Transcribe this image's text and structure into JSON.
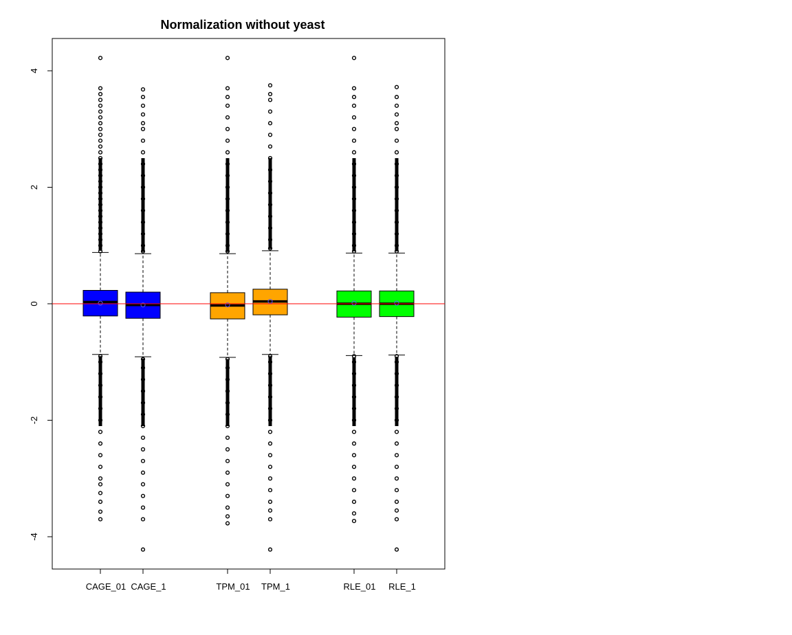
{
  "chart_data": {
    "type": "boxplot",
    "title": "Normalization without yeast",
    "xlabel": "",
    "ylabel": "",
    "ylim": [
      -4.5,
      4.5
    ],
    "y_ticks": [
      -4,
      -2,
      0,
      2,
      4
    ],
    "y_tick_labels": [
      "-4",
      "-2",
      "0",
      "2",
      "4"
    ],
    "reference_line": {
      "y": 0,
      "color": "#ff0000"
    },
    "grid": false,
    "legend": "none",
    "series": [
      {
        "name": "CAGE_01",
        "label": "CAGE_01",
        "color": "#0000ff",
        "q1": -0.21,
        "median": 0.03,
        "q3": 0.23,
        "mean": 0.01,
        "whisker_low": -0.87,
        "whisker_high": 0.88,
        "outliers_high": [
          0.9,
          1.0,
          1.1,
          1.2,
          1.3,
          1.4,
          1.5,
          1.6,
          1.7,
          1.8,
          1.9,
          2.0,
          2.1,
          2.2,
          2.3,
          2.4,
          2.5,
          2.6,
          2.7,
          2.8,
          2.9,
          3.0,
          3.1,
          3.2,
          3.3,
          3.4,
          3.5,
          3.6,
          3.7,
          4.22
        ],
        "outliers_low": [
          -0.9,
          -1.0,
          -1.2,
          -1.4,
          -1.6,
          -1.8,
          -2.0,
          -2.2,
          -2.4,
          -2.6,
          -2.8,
          -3.0,
          -3.1,
          -3.25,
          -3.4,
          -3.57,
          -3.7
        ]
      },
      {
        "name": "CAGE_1",
        "label": "CAGE_1",
        "color": "#0000ff",
        "q1": -0.25,
        "median": -0.02,
        "q3": 0.2,
        "mean": -0.02,
        "whisker_low": -0.91,
        "whisker_high": 0.86,
        "outliers_high": [
          0.9,
          1.0,
          1.2,
          1.4,
          1.6,
          1.8,
          2.0,
          2.2,
          2.4,
          2.6,
          2.8,
          3.0,
          3.1,
          3.25,
          3.4,
          3.55,
          3.68
        ],
        "outliers_low": [
          -0.95,
          -1.1,
          -1.3,
          -1.5,
          -1.7,
          -1.9,
          -2.1,
          -2.3,
          -2.5,
          -2.7,
          -2.9,
          -3.1,
          -3.3,
          -3.5,
          -3.7,
          -4.22
        ]
      },
      {
        "name": "TPM_01",
        "label": "TPM_01",
        "color": "#ffa500",
        "q1": -0.26,
        "median": -0.03,
        "q3": 0.19,
        "mean": -0.02,
        "whisker_low": -0.92,
        "whisker_high": 0.86,
        "outliers_high": [
          0.9,
          1.0,
          1.2,
          1.4,
          1.6,
          1.8,
          2.0,
          2.2,
          2.4,
          2.6,
          2.8,
          3.0,
          3.2,
          3.4,
          3.55,
          3.7,
          4.22
        ],
        "outliers_low": [
          -0.95,
          -1.1,
          -1.3,
          -1.5,
          -1.7,
          -1.9,
          -2.1,
          -2.3,
          -2.5,
          -2.7,
          -2.9,
          -3.1,
          -3.3,
          -3.5,
          -3.65,
          -3.77
        ]
      },
      {
        "name": "TPM_1",
        "label": "TPM_1",
        "color": "#ffa500",
        "q1": -0.19,
        "median": 0.04,
        "q3": 0.25,
        "mean": 0.04,
        "whisker_low": -0.87,
        "whisker_high": 0.91,
        "outliers_high": [
          0.95,
          1.1,
          1.3,
          1.5,
          1.7,
          1.9,
          2.1,
          2.3,
          2.5,
          2.7,
          2.9,
          3.1,
          3.3,
          3.5,
          3.6,
          3.75
        ],
        "outliers_low": [
          -0.9,
          -1.0,
          -1.2,
          -1.4,
          -1.6,
          -1.8,
          -2.0,
          -2.2,
          -2.4,
          -2.6,
          -2.8,
          -3.0,
          -3.2,
          -3.4,
          -3.55,
          -3.7,
          -4.22
        ]
      },
      {
        "name": "RLE_01",
        "label": "RLE_01",
        "color": "#00ff00",
        "q1": -0.23,
        "median": 0.0,
        "q3": 0.22,
        "mean": 0.01,
        "whisker_low": -0.89,
        "whisker_high": 0.87,
        "outliers_high": [
          0.9,
          1.0,
          1.2,
          1.4,
          1.6,
          1.8,
          2.0,
          2.2,
          2.4,
          2.6,
          2.8,
          3.0,
          3.2,
          3.4,
          3.55,
          3.7,
          4.22
        ],
        "outliers_low": [
          -0.9,
          -1.0,
          -1.2,
          -1.4,
          -1.6,
          -1.8,
          -2.0,
          -2.2,
          -2.4,
          -2.6,
          -2.8,
          -3.0,
          -3.2,
          -3.4,
          -3.6,
          -3.73
        ]
      },
      {
        "name": "RLE_1",
        "label": "RLE_1",
        "color": "#00ff00",
        "q1": -0.22,
        "median": 0.0,
        "q3": 0.22,
        "mean": 0.01,
        "whisker_low": -0.88,
        "whisker_high": 0.87,
        "outliers_high": [
          0.9,
          1.0,
          1.2,
          1.4,
          1.6,
          1.8,
          2.0,
          2.2,
          2.4,
          2.6,
          2.8,
          3.0,
          3.1,
          3.25,
          3.4,
          3.55,
          3.72
        ],
        "outliers_low": [
          -0.9,
          -1.0,
          -1.2,
          -1.4,
          -1.6,
          -1.8,
          -2.0,
          -2.2,
          -2.4,
          -2.6,
          -2.8,
          -3.0,
          -3.2,
          -3.4,
          -3.55,
          -3.7,
          -4.22
        ]
      }
    ]
  }
}
